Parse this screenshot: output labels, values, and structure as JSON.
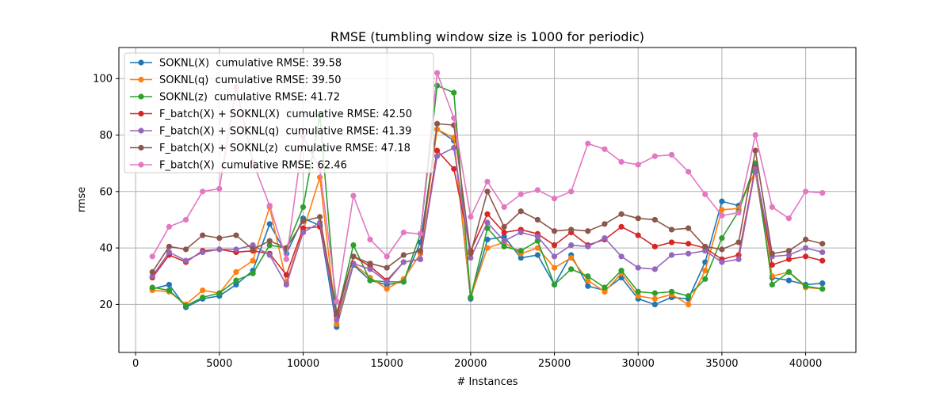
{
  "chart_data": {
    "type": "line",
    "title": "RMSE (tumbling window size is 1000 for periodic)",
    "xlabel": "# Instances",
    "ylabel": "rmse",
    "xlim": [
      -1000,
      43000
    ],
    "ylim": [
      3,
      111
    ],
    "xticks": [
      0,
      5000,
      10000,
      15000,
      20000,
      25000,
      30000,
      35000,
      40000
    ],
    "yticks": [
      20,
      40,
      60,
      80,
      100
    ],
    "grid": true,
    "legend_position": "top-left",
    "x": [
      1000,
      2000,
      3000,
      4000,
      5000,
      6000,
      7000,
      8000,
      9000,
      10000,
      11000,
      12000,
      13000,
      14000,
      15000,
      16000,
      17000,
      18000,
      19000,
      20000,
      21000,
      22000,
      23000,
      24000,
      25000,
      26000,
      27000,
      28000,
      29000,
      30000,
      31000,
      32000,
      33000,
      34000,
      35000,
      36000,
      37000,
      38000,
      39000,
      40000,
      41000
    ],
    "series": [
      {
        "name": "SOKNL(X)  cumulative RMSE: 39.58",
        "color": "#1f77b4",
        "values": [
          25.5,
          27,
          19,
          22,
          23,
          27,
          32,
          48.5,
          38,
          50.5,
          48,
          12,
          34,
          28.5,
          27,
          28,
          42,
          82,
          78,
          22,
          43,
          44,
          36.5,
          37.5,
          27,
          37.5,
          26.5,
          25,
          29.5,
          22,
          20,
          22.5,
          22,
          35,
          56.5,
          55,
          67,
          29.5,
          28.5,
          27,
          27.5
        ]
      },
      {
        "name": "SOKNL(q)  cumulative RMSE: 39.50",
        "color": "#ff7f0e",
        "values": [
          25,
          24.5,
          20,
          25,
          24,
          31.5,
          35.5,
          54.5,
          28,
          46,
          65,
          13,
          34.5,
          29.5,
          25.5,
          29,
          38,
          82,
          79,
          22.5,
          40,
          42,
          38,
          40,
          33,
          36.5,
          28.5,
          24.5,
          31,
          23,
          22,
          23.5,
          20,
          32,
          53.5,
          54,
          67.5,
          30,
          31.5,
          26,
          25.5
        ]
      },
      {
        "name": "SOKNL(z)  cumulative RMSE: 41.72",
        "color": "#2ca02c",
        "values": [
          26,
          25,
          19.5,
          22.5,
          24,
          28.5,
          31,
          41,
          40,
          54.5,
          87,
          16,
          41,
          28.5,
          28,
          28,
          45,
          97.5,
          95,
          22.5,
          47,
          40.5,
          39,
          42.5,
          27,
          32.5,
          30,
          26,
          32,
          24.5,
          24,
          24.5,
          23,
          29,
          43.5,
          53,
          70,
          27,
          31.5,
          26.5,
          25.5
        ]
      },
      {
        "name": "F_batch(X) + SOKNL(X)  cumulative RMSE: 42.50",
        "color": "#d62728",
        "values": [
          29.5,
          37.5,
          35,
          39,
          39.5,
          38.5,
          39,
          38,
          30.5,
          47,
          47.5,
          16,
          37,
          33.5,
          28.5,
          35,
          36,
          74.5,
          68,
          39,
          52,
          45.5,
          46.5,
          45,
          41,
          45.5,
          41,
          43,
          47.5,
          44.5,
          40.5,
          42,
          41.5,
          40,
          36,
          37.5,
          68.5,
          34,
          36,
          37,
          35.5
        ]
      },
      {
        "name": "F_batch(X) + SOKNL(q)  cumulative RMSE: 41.39",
        "color": "#9467bd",
        "values": [
          30,
          38.5,
          35.5,
          38.5,
          39.5,
          39.5,
          41,
          37.5,
          27,
          45.5,
          49,
          14.5,
          34.5,
          32.5,
          28,
          35,
          36,
          72.5,
          75.5,
          36.5,
          49,
          42.5,
          45.5,
          44,
          37,
          41,
          40.5,
          43.5,
          37,
          33,
          32.5,
          37.5,
          38,
          39,
          35,
          36,
          68,
          37,
          37.5,
          40,
          38.5
        ]
      },
      {
        "name": "F_batch(X) + SOKNL(z)  cumulative RMSE: 47.18",
        "color": "#8c564b",
        "values": [
          31.5,
          40.5,
          39.5,
          44.5,
          43.5,
          44.5,
          39.5,
          42.5,
          40,
          49.5,
          51,
          17,
          37,
          34.5,
          33,
          37.5,
          39,
          84,
          83.5,
          38,
          60,
          47.5,
          53,
          50,
          46,
          46.5,
          46,
          48.5,
          52,
          50.5,
          50,
          46.5,
          47,
          40.5,
          39.5,
          42,
          74.5,
          38,
          39,
          43,
          41.5
        ]
      },
      {
        "name": "F_batch(X)  cumulative RMSE: 62.46",
        "color": "#e377c2",
        "values": [
          37,
          47.5,
          50,
          60,
          61,
          97,
          70.5,
          55,
          36,
          79.5,
          68,
          21,
          58.5,
          43,
          37,
          45.5,
          45,
          102,
          86,
          51,
          63.5,
          54.5,
          59,
          60.5,
          57.5,
          60,
          77,
          75,
          70.5,
          69.5,
          72.5,
          73,
          67,
          59,
          51.5,
          52.5,
          80,
          54.5,
          50.5,
          60,
          59.5
        ]
      }
    ]
  }
}
